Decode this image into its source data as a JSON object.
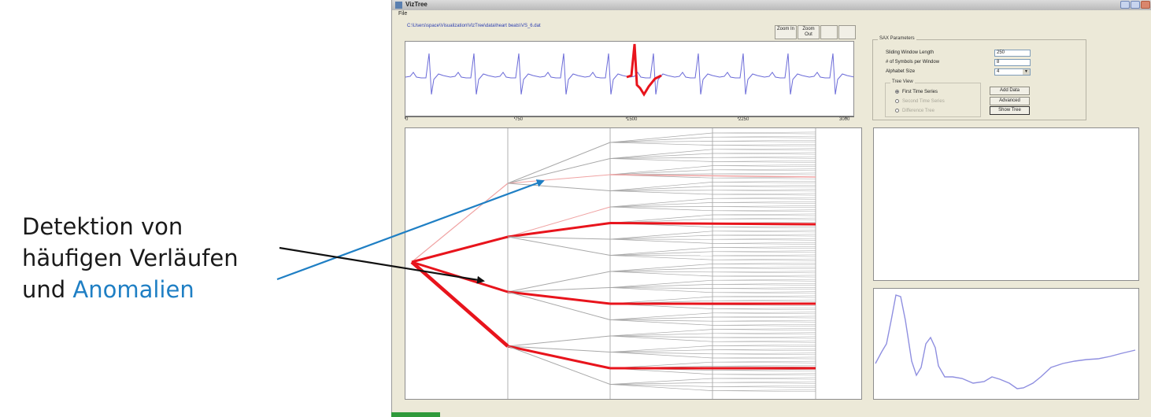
{
  "annotation": {
    "line1": "Detektion von",
    "line2": "häufigen Verläufen",
    "line3_prefix": "und ",
    "line3_highlight": "Anomalien",
    "text_color": "#1a1a1a",
    "highlight_color": "#1f7fc4"
  },
  "window": {
    "title": "VizTree",
    "menu": [
      "File"
    ],
    "file_path": "C:\\Users\\space\\Visualization\\VizTree\\data\\heart beats\\VS_6.dat",
    "toolbar": {
      "zoom_in": "Zoom In",
      "zoom_out": "Zoom Out"
    }
  },
  "timeseries_axis": {
    "ticks": [
      "0",
      "750",
      "1500",
      "2250",
      "3000"
    ]
  },
  "sax_params": {
    "title": "SAX Parameters",
    "sliding_window_label": "Sliding Window Length",
    "sliding_window_value": "250",
    "symbols_label": "# of Symbols per Window",
    "symbols_value": "8",
    "alphabet_label": "Alphabet Size",
    "alphabet_value": "4",
    "tree_view": {
      "title": "Tree View",
      "options": [
        {
          "label": "First Time Series",
          "selected": true,
          "enabled": true
        },
        {
          "label": "Second Time Series",
          "selected": false,
          "enabled": false
        },
        {
          "label": "Difference Tree",
          "selected": false,
          "enabled": false
        }
      ]
    },
    "buttons": {
      "add_data": "Add Data",
      "advanced": "Advanced",
      "show_tree": "Show Tree"
    }
  },
  "colors": {
    "anomaly": "#e8141c",
    "series": "#6b6bd8",
    "window_bg": "#ece9d8",
    "arrow_blue": "#1f7fc4"
  }
}
